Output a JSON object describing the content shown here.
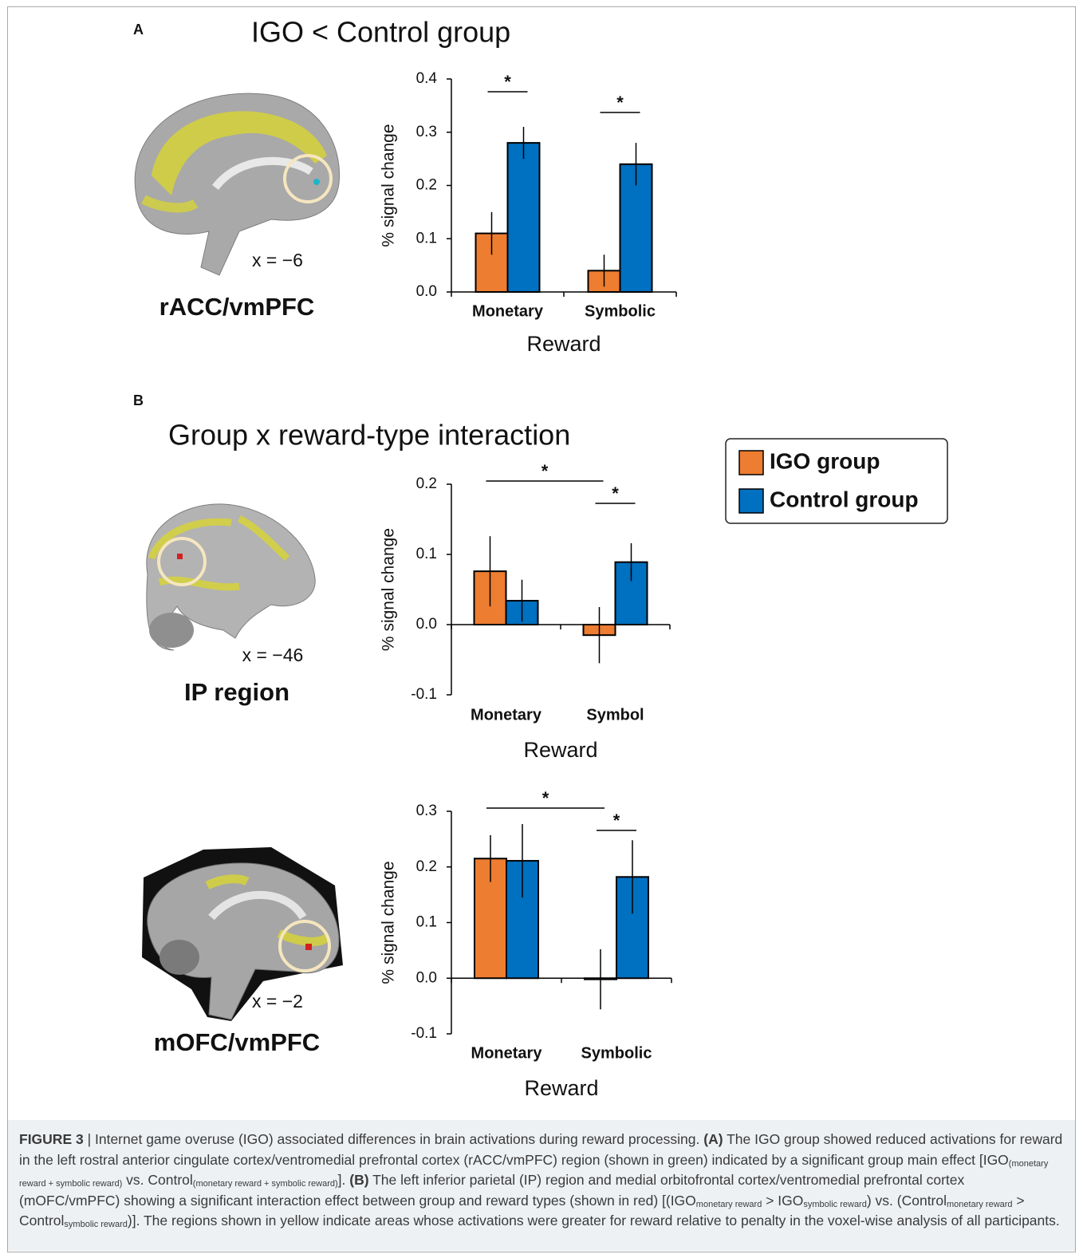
{
  "panels": [
    {
      "label": "A",
      "title": "IGO < Control group"
    },
    {
      "label": "B",
      "title": "Group x reward-type interaction"
    }
  ],
  "chart_data": [
    {
      "type": "bar",
      "region": "rACC/vmPFC",
      "coordinate": "x = −6",
      "ylabel": "% signal change",
      "xlabel": "Reward",
      "categories": [
        "Monetary",
        "Symbolic"
      ],
      "series": [
        {
          "color": "#ed7d31",
          "values": [
            0.11,
            0.04
          ],
          "errors": [
            0.04,
            0.03
          ]
        },
        {
          "color": "#0070c0",
          "values": [
            0.28,
            0.24
          ],
          "errors": [
            0.03,
            0.04
          ]
        }
      ],
      "ylim": [
        0,
        0.4
      ],
      "yticks": [
        {
          "value": 0,
          "label": "0.0"
        },
        0.1,
        0.2,
        0.3,
        0.4
      ],
      "significance": [
        {
          "label": "*",
          "from": [
            0,
            0
          ],
          "to": [
            0,
            1
          ]
        },
        {
          "label": "*",
          "from": [
            1,
            0
          ],
          "to": [
            1,
            1
          ]
        }
      ]
    },
    {
      "type": "bar",
      "region": "IP region",
      "coordinate": "x = −46",
      "ylabel": "% signal change",
      "xlabel": "Reward",
      "categories": [
        "Monetary",
        "Symbol"
      ],
      "series": [
        {
          "name": "IGO group",
          "color": "#ed7d31",
          "values": [
            0.076,
            -0.015
          ],
          "errors": [
            0.05,
            0.04
          ]
        },
        {
          "name": "Control group",
          "color": "#0070c0",
          "values": [
            0.034,
            0.089
          ],
          "errors": [
            0.03,
            0.027
          ]
        }
      ],
      "ylim": [
        -0.1,
        0.2
      ],
      "yticks": [
        -0.1,
        {
          "value": 0,
          "label": "0.0"
        },
        0.1,
        0.2
      ],
      "significance": [
        {
          "label": "*",
          "from": [
            0,
            0
          ],
          "to": [
            1,
            0
          ]
        },
        {
          "label": "*",
          "from": [
            1,
            0
          ],
          "to": [
            1,
            1
          ]
        }
      ]
    },
    {
      "type": "bar",
      "region": "mOFC/vmPFC",
      "coordinate": "x = −2",
      "ylabel": "% signal change",
      "xlabel": "Reward",
      "categories": [
        "Monetary",
        "Symbolic"
      ],
      "series": [
        {
          "color": "#ed7d31",
          "values": [
            0.215,
            -0.002
          ],
          "errors": [
            0.042,
            0.054
          ]
        },
        {
          "color": "#0070c0",
          "values": [
            0.211,
            0.182
          ],
          "errors": [
            0.066,
            0.066
          ]
        }
      ],
      "ylim": [
        -0.1,
        0.3
      ],
      "yticks": [
        -0.1,
        {
          "value": 0,
          "label": "0.0"
        },
        0.1,
        0.2,
        0.3
      ],
      "significance": [
        {
          "label": "*",
          "from": [
            0,
            0
          ],
          "to": [
            1,
            0
          ]
        },
        {
          "label": "*",
          "from": [
            1,
            0
          ],
          "to": [
            1,
            1
          ]
        }
      ]
    }
  ],
  "caption": [
    {
      "text": "FIGURE 3",
      "style": "bold"
    },
    {
      "text": " | Internet game overuse (IGO) associated differences in brain activations during reward processing. "
    },
    {
      "text": "(A)",
      "style": "bold"
    },
    {
      "text": " The IGO group showed reduced activations for reward in the left rostral anterior cingulate cortex/ventromedial prefrontal cortex (rACC/vmPFC) region (shown in green) indicated by a significant group main effect [IGO"
    },
    {
      "text": "(monetary reward + symbolic reward)",
      "style": "sub"
    },
    {
      "text": " vs. Control"
    },
    {
      "text": "(monetary reward + symbolic reward)",
      "style": "sub"
    },
    {
      "text": "]. "
    },
    {
      "text": "(B)",
      "style": "bold"
    },
    {
      "text": " The left inferior parietal (IP) region and medial orbitofrontal cortex/ventromedial prefrontal cortex (mOFC/vmPFC) showing a significant interaction effect between group and reward types (shown in red) [(IGO"
    },
    {
      "text": "monetary reward",
      "style": "sub"
    },
    {
      "text": " > IGO"
    },
    {
      "text": "symbolic reward",
      "style": "sub"
    },
    {
      "text": ") vs. (Control"
    },
    {
      "text": "monetary reward",
      "style": "sub"
    },
    {
      "text": " > Control"
    },
    {
      "text": "symbolic reward",
      "style": "sub"
    },
    {
      "text": ")]. The regions shown in yellow indicate areas whose activations were greater for reward relative to penalty in the voxel-wise analysis of all participants."
    }
  ]
}
